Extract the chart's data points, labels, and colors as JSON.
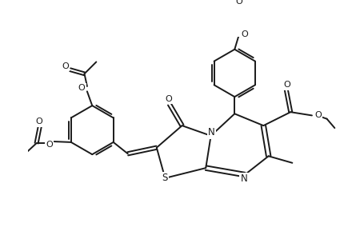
{
  "bg": "#ffffff",
  "lc": "#1a1a1a",
  "lw": 1.4,
  "fs": 7.5,
  "figsize": [
    4.56,
    3.09
  ],
  "dpi": 100,
  "xlim": [
    0,
    9.12
  ],
  "ylim": [
    0,
    6.18
  ]
}
